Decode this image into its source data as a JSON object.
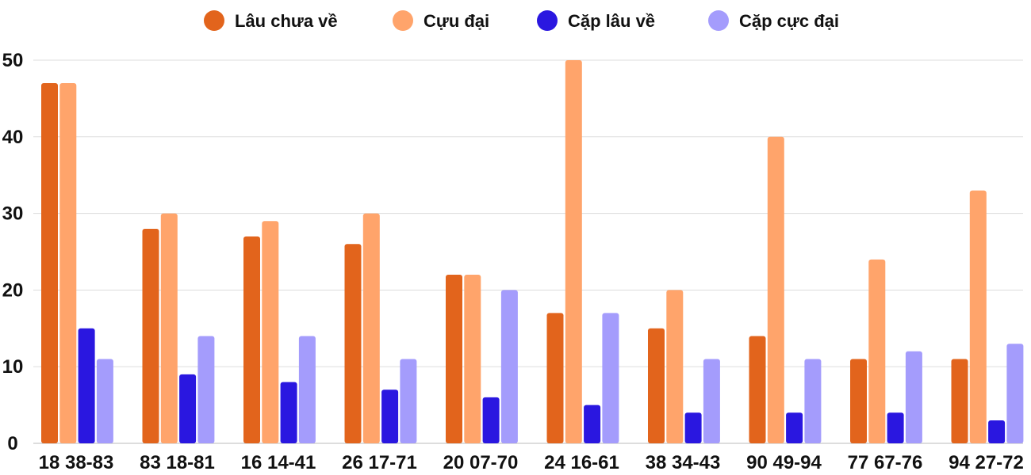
{
  "chart_data": {
    "type": "bar",
    "title": "",
    "xlabel": "",
    "ylabel": "",
    "ylim": [
      0,
      50
    ],
    "yticks": [
      "0",
      "10",
      "20",
      "30",
      "40",
      "50"
    ],
    "grid": true,
    "legend_position": "top-center",
    "categories": [
      "18 38-83",
      "83 18-81",
      "16 14-41",
      "26 17-71",
      "20 07-70",
      "24 16-61",
      "38 34-43",
      "90 49-94",
      "77 67-76",
      "94 27-72"
    ],
    "series": [
      {
        "name": "Lâu chưa về",
        "color": "#e2641c",
        "values": [
          47,
          28,
          27,
          26,
          22,
          17,
          15,
          14,
          11,
          11
        ]
      },
      {
        "name": "Cựu đại",
        "color": "#ffa46b",
        "values": [
          47,
          30,
          29,
          30,
          22,
          50,
          20,
          40,
          24,
          33
        ]
      },
      {
        "name": "Cặp lâu về",
        "color": "#2a17e0",
        "values": [
          15,
          9,
          8,
          7,
          6,
          5,
          4,
          4,
          4,
          3
        ]
      },
      {
        "name": "Cặp cực đại",
        "color": "#a49cfc",
        "values": [
          11,
          14,
          14,
          11,
          20,
          17,
          11,
          11,
          12,
          13
        ]
      }
    ]
  }
}
